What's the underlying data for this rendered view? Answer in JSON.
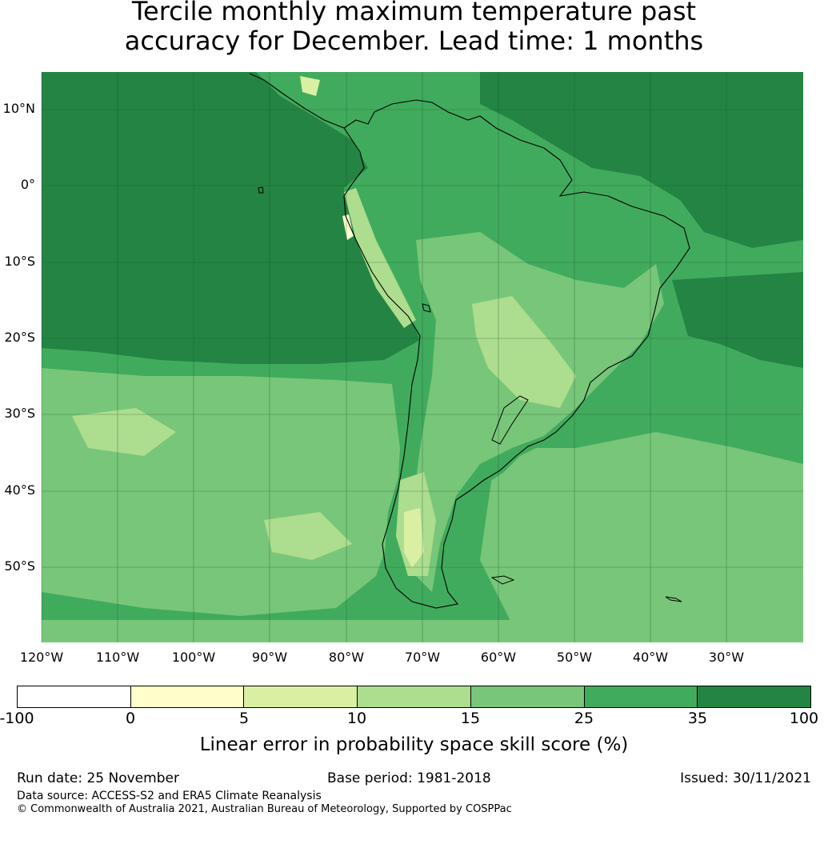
{
  "title_line1": "Tercile monthly maximum temperature past",
  "title_line2": "accuracy for December. Lead time: 1 months",
  "lat_labels": [
    "10°N",
    "0°",
    "10°S",
    "20°S",
    "30°S",
    "40°S",
    "50°S"
  ],
  "lon_labels": [
    "120°W",
    "110°W",
    "100°W",
    "90°W",
    "80°W",
    "70°W",
    "60°W",
    "50°W",
    "40°W",
    "30°W"
  ],
  "colorbar": {
    "ticks": [
      "-100",
      "0",
      "5",
      "10",
      "15",
      "25",
      "35",
      "100"
    ],
    "colors": [
      "#ffffff",
      "#ffffcc",
      "#d9f0a3",
      "#addd8e",
      "#78c679",
      "#41ab5d",
      "#238443"
    ],
    "label": "Linear error in probability space skill score (%)"
  },
  "footer": {
    "run_date": "Run date: 25 November",
    "base_period": "Base period: 1981-2018",
    "issued": "Issued: 30/11/2021",
    "data_source": "Data source: ACCESS-S2 and ERA5 Climate Reanalysis",
    "copyright": "© Commonwealth of Australia 2021, Australian Bureau of Meteorology, Supported by COSPPac"
  }
}
